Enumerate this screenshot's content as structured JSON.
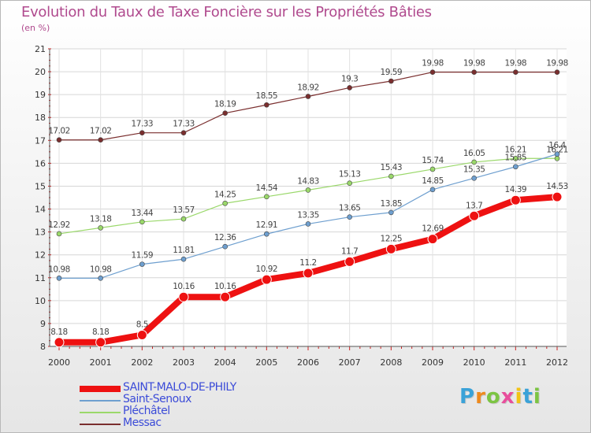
{
  "chart_data": {
    "type": "line",
    "title": "Evolution du Taux de Taxe Foncière sur les Propriétés Bâties",
    "subtitle": "(en %)",
    "x": [
      "2000",
      "2001",
      "2002",
      "2003",
      "2004",
      "2005",
      "2006",
      "2007",
      "2008",
      "2009",
      "2010",
      "2011",
      "2012"
    ],
    "ylim": [
      8,
      21
    ],
    "yticks": [
      8,
      9,
      10,
      11,
      12,
      13,
      14,
      15,
      16,
      17,
      18,
      19,
      20,
      21
    ],
    "grid": true,
    "legend_position": "bottom-left",
    "series": [
      {
        "name": "SAINT-MALO-DE-PHILY",
        "color": "#ee1111",
        "values": [
          8.18,
          8.18,
          8.5,
          10.16,
          10.16,
          10.92,
          11.2,
          11.7,
          12.25,
          12.69,
          13.7,
          14.39,
          14.53
        ],
        "labels": [
          "8.18",
          "8.18",
          "8.5",
          "10.16",
          "10.16",
          "10.92",
          "11.2",
          "11.7",
          "12.25",
          "12.69",
          "13.7",
          "14.39",
          "14.53"
        ]
      },
      {
        "name": "Saint-Senoux",
        "color": "#6e9fcf",
        "values": [
          10.98,
          10.98,
          11.59,
          11.81,
          12.36,
          12.91,
          13.35,
          13.65,
          13.85,
          14.85,
          15.35,
          15.85,
          16.4
        ],
        "labels": [
          "10.98",
          "10.98",
          "11.59",
          "11.81",
          "12.36",
          "12.91",
          "13.35",
          "13.65",
          "13.85",
          "14.85",
          "15.35",
          "15.85",
          "16.4"
        ]
      },
      {
        "name": "Pléchâtel",
        "color": "#9ad86a",
        "values": [
          12.92,
          13.18,
          13.44,
          13.57,
          14.25,
          14.54,
          14.83,
          15.13,
          15.43,
          15.74,
          16.05,
          16.21,
          16.21
        ],
        "labels": [
          "12.92",
          "13.18",
          "13.44",
          "13.57",
          "14.25",
          "14.54",
          "14.83",
          "15.13",
          "15.43",
          "15.74",
          "16.05",
          "16.21",
          "16.21"
        ]
      },
      {
        "name": "Messac",
        "color": "#7a2e2e",
        "values": [
          17.02,
          17.02,
          17.33,
          17.33,
          18.19,
          18.55,
          18.92,
          19.3,
          19.59,
          19.98,
          19.98,
          19.98,
          19.98
        ],
        "labels": [
          "17.02",
          "17.02",
          "17.33",
          "17.33",
          "18.19",
          "18.55",
          "18.92",
          "19.3",
          "19.59",
          "19.98",
          "19.98",
          "19.98",
          "19.98"
        ]
      }
    ]
  },
  "logo": {
    "letters": [
      "P",
      "r",
      "o",
      "x",
      "i",
      "t",
      "i"
    ],
    "colors": [
      "#3aa2d8",
      "#ee8a1e",
      "#7cc443",
      "#e84e9c",
      "#f2c316",
      "#3aa2d8",
      "#7cc443"
    ]
  }
}
